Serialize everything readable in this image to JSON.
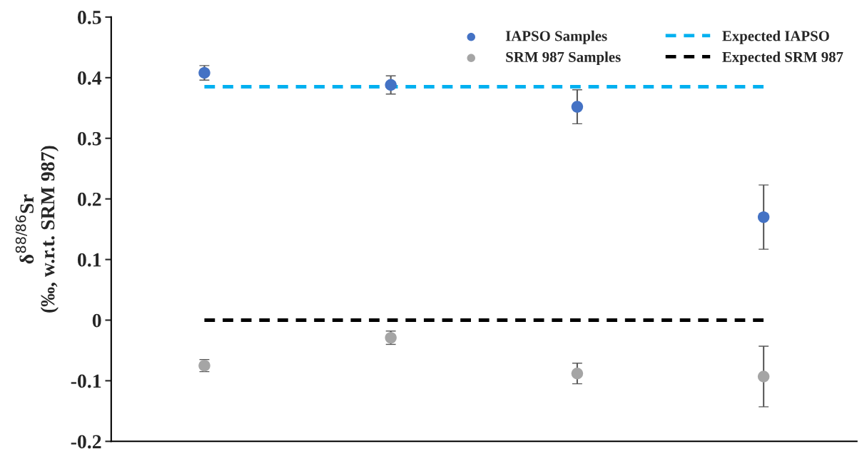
{
  "chart_data": {
    "type": "scatter",
    "ylabel": "δ$^{88/86}$Sr\n(‰, w.r.t. SRM 987)",
    "categories": [
      null,
      null,
      null,
      null
    ],
    "series": [
      {
        "name": "IAPSO Samples",
        "color": "#4472c4",
        "marker": "circle",
        "values": [
          0.408,
          0.388,
          0.352,
          0.17
        ],
        "errors": [
          0.012,
          0.015,
          0.028,
          0.053
        ]
      },
      {
        "name": "SRM 987 Samples",
        "color": "#a5a5a5",
        "marker": "circle",
        "values": [
          -0.075,
          -0.029,
          -0.088,
          -0.093
        ],
        "errors": [
          0.01,
          0.011,
          0.017,
          0.05
        ]
      },
      {
        "name": "Expected IAPSO",
        "type": "line",
        "color": "#00b0f0",
        "line_style": "dashed",
        "values": [
          0.385,
          0.385,
          0.385,
          0.385
        ]
      },
      {
        "name": "Expected SRM 987",
        "type": "line",
        "color": "#000000",
        "line_style": "dashed",
        "values": [
          0,
          0,
          0,
          0
        ]
      }
    ],
    "ylim": [
      -0.2,
      0.5
    ],
    "yticks": [
      -0.2,
      -0.1,
      0,
      0.1,
      0.2,
      0.3,
      0.4,
      0.5
    ],
    "tick_labels": "y",
    "grid": false,
    "legend": "top right"
  }
}
